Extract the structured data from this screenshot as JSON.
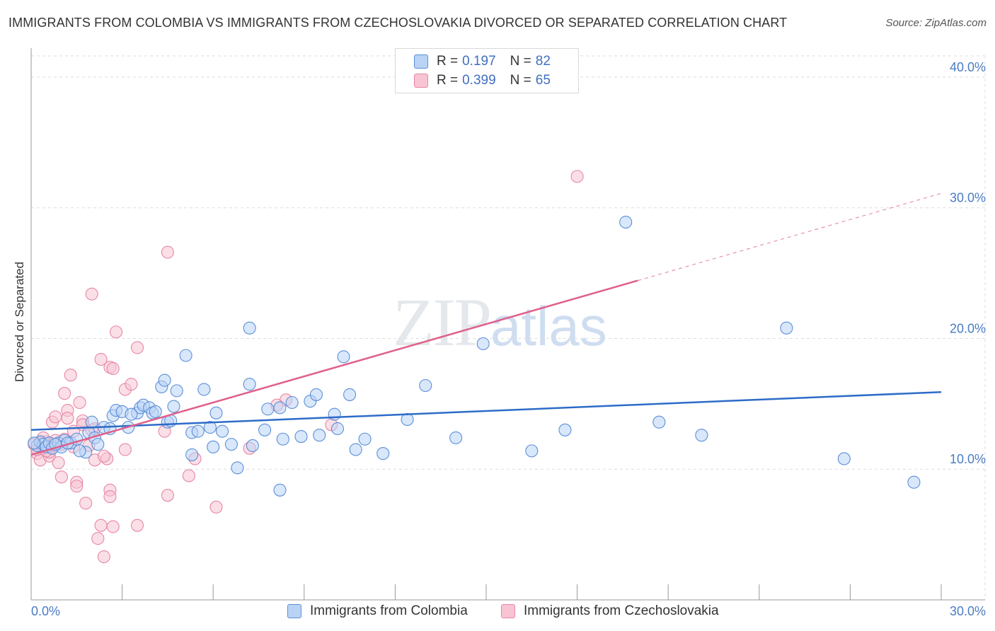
{
  "header": {
    "title": "IMMIGRANTS FROM COLOMBIA VS IMMIGRANTS FROM CZECHOSLOVAKIA DIVORCED OR SEPARATED CORRELATION CHART",
    "source": "Source: ZipAtlas.com"
  },
  "watermark": {
    "zip": "ZIP",
    "atlas": "atlas"
  },
  "legend": {
    "r_label": "R =",
    "n_label": "N =",
    "series1": {
      "r": "0.197",
      "n": "82"
    },
    "series2": {
      "r": "0.399",
      "n": "65"
    }
  },
  "colors": {
    "colombia_fill": "#b9d3f5",
    "colombia_stroke": "#5b8fd8",
    "colombia_line": "#2d6cc8",
    "czech_fill": "#f8c4d4",
    "czech_stroke": "#e786a5",
    "czech_line": "#e0608a",
    "tick_text": "#4a7cc4",
    "grid": "#dddddd"
  },
  "chart_data": {
    "type": "scatter",
    "title": "IMMIGRANTS FROM COLOMBIA VS IMMIGRANTS FROM CZECHOSLOVAKIA DIVORCED OR SEPARATED CORRELATION CHART",
    "xlabel": "",
    "ylabel": "Divorced or Separated",
    "xlim": [
      0,
      30
    ],
    "ylim": [
      0,
      42
    ],
    "x_tick_labels": [
      "0.0%",
      "30.0%"
    ],
    "y_ticks": [
      10,
      20,
      30,
      40
    ],
    "y_tick_labels": [
      "10.0%",
      "20.0%",
      "30.0%",
      "40.0%"
    ],
    "legend_position": "top-center",
    "series": [
      {
        "name": "Immigrants from Colombia",
        "r": 0.197,
        "n": 82,
        "trend": {
          "x": [
            0,
            30
          ],
          "y": [
            13.0,
            15.9
          ],
          "dashed_from": null
        },
        "points": [
          [
            0.2,
            11.8
          ],
          [
            0.3,
            12.1
          ],
          [
            0.4,
            11.9
          ],
          [
            0.5,
            11.7
          ],
          [
            0.6,
            12.0
          ],
          [
            0.7,
            11.6
          ],
          [
            0.9,
            12.0
          ],
          [
            1.1,
            12.2
          ],
          [
            1.3,
            12.0
          ],
          [
            1.5,
            12.3
          ],
          [
            1.8,
            11.3
          ],
          [
            1.9,
            12.8
          ],
          [
            2.0,
            13.6
          ],
          [
            2.1,
            12.4
          ],
          [
            2.2,
            11.9
          ],
          [
            2.4,
            13.2
          ],
          [
            2.7,
            14.1
          ],
          [
            2.8,
            14.5
          ],
          [
            3.0,
            14.4
          ],
          [
            3.5,
            14.3
          ],
          [
            3.6,
            14.7
          ],
          [
            3.7,
            14.9
          ],
          [
            3.9,
            14.7
          ],
          [
            4.0,
            14.3
          ],
          [
            4.1,
            14.4
          ],
          [
            4.3,
            16.3
          ],
          [
            4.4,
            16.8
          ],
          [
            4.5,
            13.6
          ],
          [
            4.7,
            14.8
          ],
          [
            4.8,
            16.0
          ],
          [
            5.1,
            18.7
          ],
          [
            5.3,
            12.8
          ],
          [
            5.3,
            11.1
          ],
          [
            5.7,
            16.1
          ],
          [
            5.9,
            13.2
          ],
          [
            6.0,
            11.7
          ],
          [
            6.1,
            14.3
          ],
          [
            6.6,
            11.9
          ],
          [
            6.8,
            10.1
          ],
          [
            7.2,
            16.5
          ],
          [
            7.3,
            11.8
          ],
          [
            7.7,
            13.0
          ],
          [
            7.8,
            14.6
          ],
          [
            8.2,
            14.7
          ],
          [
            8.3,
            12.3
          ],
          [
            8.2,
            8.4
          ],
          [
            8.6,
            15.1
          ],
          [
            8.9,
            12.5
          ],
          [
            9.2,
            15.2
          ],
          [
            9.4,
            15.7
          ],
          [
            9.5,
            12.6
          ],
          [
            10.0,
            14.2
          ],
          [
            10.1,
            13.1
          ],
          [
            10.3,
            18.6
          ],
          [
            10.5,
            15.7
          ],
          [
            10.7,
            11.5
          ],
          [
            11.0,
            12.3
          ],
          [
            11.6,
            11.2
          ],
          [
            12.4,
            13.8
          ],
          [
            13.0,
            16.4
          ],
          [
            14.0,
            12.4
          ],
          [
            14.9,
            19.6
          ],
          [
            16.5,
            11.4
          ],
          [
            17.6,
            13.0
          ],
          [
            19.6,
            28.9
          ],
          [
            20.7,
            13.6
          ],
          [
            22.1,
            12.6
          ],
          [
            24.9,
            20.8
          ],
          [
            26.8,
            10.8
          ],
          [
            29.1,
            9.0
          ],
          [
            7.2,
            20.8
          ],
          [
            1.0,
            11.7
          ],
          [
            0.8,
            11.9
          ],
          [
            1.6,
            11.4
          ],
          [
            2.6,
            13.1
          ],
          [
            3.2,
            13.2
          ],
          [
            4.6,
            13.7
          ],
          [
            6.3,
            12.9
          ],
          [
            3.3,
            14.2
          ],
          [
            5.5,
            12.9
          ],
          [
            1.2,
            12.0
          ],
          [
            0.1,
            12.0
          ]
        ]
      },
      {
        "name": "Immigrants from Czechoslovakia",
        "r": 0.399,
        "n": 65,
        "trend": {
          "x": [
            0,
            30
          ],
          "y": [
            11.1,
            31.1
          ],
          "dashed_from": 20.0
        },
        "points": [
          [
            0.2,
            11.2
          ],
          [
            0.3,
            10.7
          ],
          [
            0.4,
            11.6
          ],
          [
            0.5,
            12.1
          ],
          [
            0.6,
            11.0
          ],
          [
            0.7,
            13.6
          ],
          [
            0.8,
            14.0
          ],
          [
            0.9,
            10.5
          ],
          [
            1.0,
            11.9
          ],
          [
            1.1,
            15.8
          ],
          [
            1.2,
            14.5
          ],
          [
            1.3,
            17.2
          ],
          [
            1.4,
            12.9
          ],
          [
            1.5,
            9.0
          ],
          [
            1.5,
            8.7
          ],
          [
            1.6,
            15.1
          ],
          [
            1.7,
            13.7
          ],
          [
            1.8,
            7.4
          ],
          [
            1.9,
            11.8
          ],
          [
            2.0,
            13.0
          ],
          [
            2.0,
            23.4
          ],
          [
            2.1,
            10.7
          ],
          [
            2.2,
            4.7
          ],
          [
            2.3,
            18.4
          ],
          [
            2.3,
            5.7
          ],
          [
            2.4,
            3.3
          ],
          [
            2.5,
            10.8
          ],
          [
            2.6,
            17.8
          ],
          [
            2.6,
            8.4
          ],
          [
            2.6,
            7.9
          ],
          [
            2.7,
            17.7
          ],
          [
            2.7,
            5.6
          ],
          [
            2.8,
            20.5
          ],
          [
            3.1,
            11.5
          ],
          [
            3.1,
            16.1
          ],
          [
            3.3,
            16.5
          ],
          [
            3.5,
            19.3
          ],
          [
            3.5,
            5.7
          ],
          [
            4.5,
            26.6
          ],
          [
            4.5,
            8.0
          ],
          [
            5.2,
            9.5
          ],
          [
            5.4,
            10.8
          ],
          [
            6.1,
            7.1
          ],
          [
            7.2,
            11.6
          ],
          [
            8.4,
            15.3
          ],
          [
            9.9,
            13.4
          ],
          [
            18.0,
            32.4
          ],
          [
            0.1,
            11.9
          ],
          [
            0.2,
            11.5
          ],
          [
            0.4,
            12.4
          ],
          [
            0.6,
            11.3
          ],
          [
            0.8,
            12.2
          ],
          [
            1.0,
            9.4
          ],
          [
            1.2,
            13.9
          ],
          [
            1.4,
            11.7
          ],
          [
            1.7,
            13.4
          ],
          [
            2.1,
            13.1
          ],
          [
            2.4,
            11.0
          ],
          [
            0.3,
            12.0
          ],
          [
            0.5,
            11.4
          ],
          [
            0.7,
            11.8
          ],
          [
            0.9,
            12.0
          ],
          [
            4.4,
            12.9
          ],
          [
            8.1,
            14.9
          ],
          [
            1.1,
            12.3
          ]
        ]
      }
    ]
  },
  "bottom_legend": {
    "series1_label": "Immigrants from Colombia",
    "series2_label": "Immigrants from Czechoslovakia"
  }
}
